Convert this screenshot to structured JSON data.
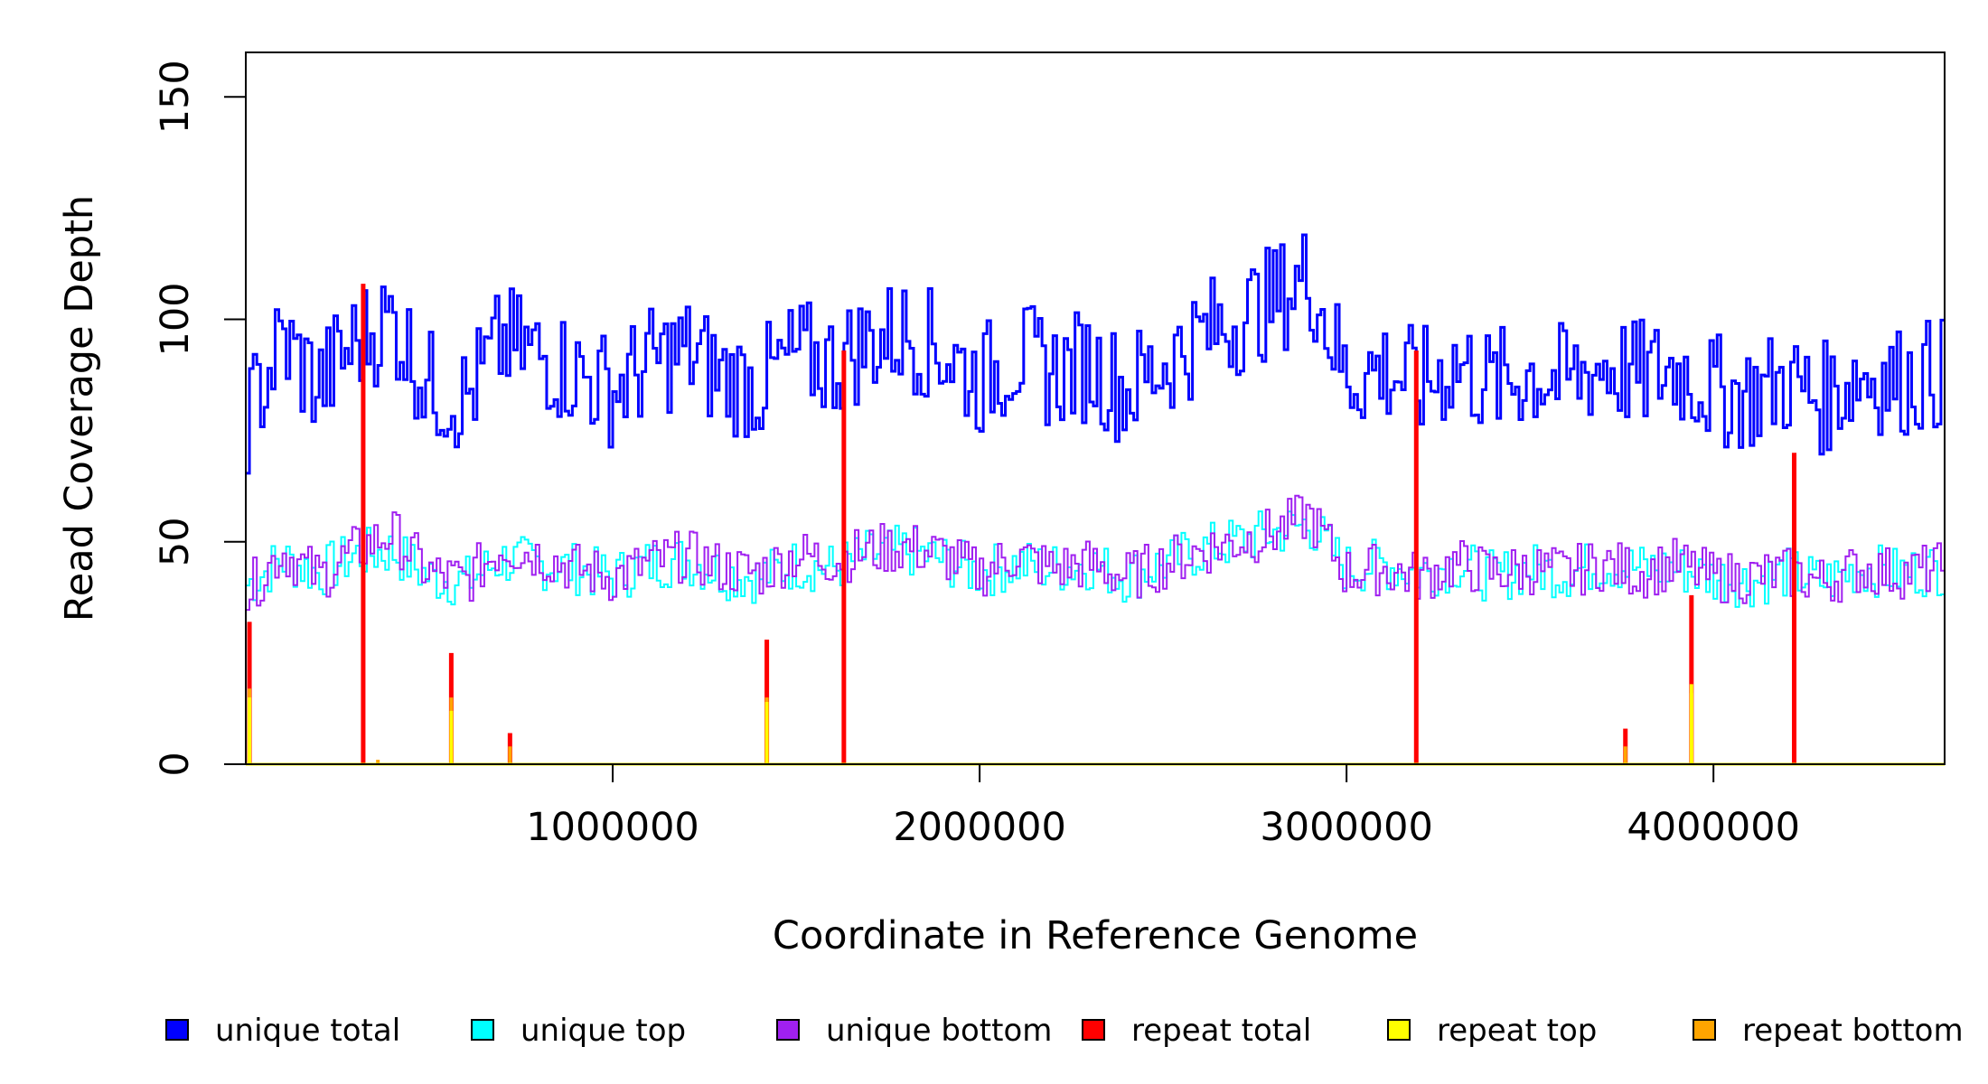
{
  "chart_data": {
    "type": "line",
    "title": "",
    "xlabel": "Coordinate in Reference Genome",
    "ylabel": "Read Coverage Depth",
    "xlim": [
      0,
      4630000
    ],
    "ylim": [
      0,
      160
    ],
    "x_ticks": [
      1000000,
      2000000,
      3000000,
      4000000
    ],
    "x_tick_labels": [
      "1000000",
      "2000000",
      "3000000",
      "4000000"
    ],
    "y_ticks": [
      0,
      50,
      100,
      150
    ],
    "y_tick_labels": [
      "0",
      "50",
      "100",
      "150"
    ],
    "grid": false,
    "legend_position": "bottom",
    "bin_width": 10000,
    "series": [
      {
        "name": "unique total",
        "color": "#0000ff",
        "step": true,
        "x": [
          0,
          100000,
          200000,
          300000,
          400000,
          500000,
          600000,
          700000,
          800000,
          900000,
          1000000,
          1100000,
          1200000,
          1300000,
          1400000,
          1500000,
          1600000,
          1700000,
          1800000,
          1900000,
          2000000,
          2100000,
          2200000,
          2300000,
          2400000,
          2500000,
          2600000,
          2700000,
          2800000,
          2900000,
          3000000,
          3100000,
          3200000,
          3300000,
          3400000,
          3500000,
          3600000,
          3700000,
          3800000,
          3900000,
          4000000,
          4100000,
          4200000,
          4300000,
          4400000,
          4500000,
          4630000
        ],
        "values": [
          77,
          95,
          85,
          95,
          100,
          85,
          82,
          95,
          92,
          88,
          84,
          90,
          93,
          87,
          85,
          92,
          90,
          95,
          97,
          93,
          86,
          92,
          88,
          90,
          84,
          90,
          96,
          100,
          104,
          110,
          87,
          89,
          85,
          90,
          85,
          88,
          86,
          90,
          87,
          89,
          84,
          83,
          86,
          82,
          88,
          86,
          88
        ]
      },
      {
        "name": "unique top",
        "color": "#00ffff",
        "step": true,
        "x": [
          0,
          100000,
          200000,
          300000,
          400000,
          500000,
          600000,
          700000,
          800000,
          900000,
          1000000,
          1100000,
          1200000,
          1300000,
          1400000,
          1500000,
          1600000,
          1700000,
          1800000,
          1900000,
          2000000,
          2100000,
          2200000,
          2300000,
          2400000,
          2500000,
          2600000,
          2700000,
          2800000,
          2900000,
          3000000,
          3100000,
          3200000,
          3300000,
          3400000,
          3500000,
          3600000,
          3700000,
          3800000,
          3900000,
          4000000,
          4100000,
          4200000,
          4300000,
          4400000,
          4500000,
          4630000
        ],
        "values": [
          40,
          46,
          43,
          47,
          48,
          42,
          41,
          46,
          45,
          44,
          42,
          45,
          46,
          43,
          42,
          45,
          44,
          47,
          48,
          46,
          43,
          45,
          44,
          45,
          42,
          45,
          48,
          50,
          52,
          54,
          44,
          45,
          43,
          45,
          42,
          44,
          43,
          45,
          44,
          44,
          42,
          41,
          43,
          41,
          44,
          43,
          44
        ]
      },
      {
        "name": "unique bottom",
        "color": "#a020f0",
        "step": true,
        "x": [
          0,
          100000,
          200000,
          300000,
          400000,
          500000,
          600000,
          700000,
          800000,
          900000,
          1000000,
          1100000,
          1200000,
          1300000,
          1400000,
          1500000,
          1600000,
          1700000,
          1800000,
          1900000,
          2000000,
          2100000,
          2200000,
          2300000,
          2400000,
          2500000,
          2600000,
          2700000,
          2800000,
          2900000,
          3000000,
          3100000,
          3200000,
          3300000,
          3400000,
          3500000,
          3600000,
          3700000,
          3800000,
          3900000,
          4000000,
          4100000,
          4200000,
          4300000,
          4400000,
          4500000,
          4630000
        ],
        "values": [
          38,
          48,
          42,
          48,
          52,
          43,
          41,
          49,
          47,
          44,
          42,
          45,
          47,
          44,
          43,
          47,
          46,
          48,
          49,
          47,
          43,
          47,
          44,
          45,
          42,
          45,
          48,
          50,
          52,
          56,
          43,
          44,
          42,
          45,
          43,
          44,
          43,
          45,
          43,
          45,
          42,
          42,
          43,
          41,
          44,
          43,
          44
        ]
      },
      {
        "name": "repeat total",
        "color": "#ff0000",
        "step": true,
        "x": [
          10000,
          320000,
          560000,
          720000,
          1420000,
          1630000,
          3190000,
          3760000,
          3940000,
          4220000
        ],
        "values": [
          32,
          108,
          25,
          7,
          28,
          93,
          93,
          8,
          38,
          70
        ]
      },
      {
        "name": "repeat top",
        "color": "#ffff00",
        "step": true,
        "x": [
          10000,
          560000,
          1420000,
          3940000
        ],
        "values": [
          15,
          12,
          14,
          18
        ]
      },
      {
        "name": "repeat bottom",
        "color": "#ffa500",
        "step": true,
        "x": [
          10000,
          360000,
          560000,
          720000,
          1420000,
          3760000,
          3940000
        ],
        "values": [
          17,
          1,
          15,
          4,
          15,
          4,
          16
        ]
      }
    ]
  }
}
